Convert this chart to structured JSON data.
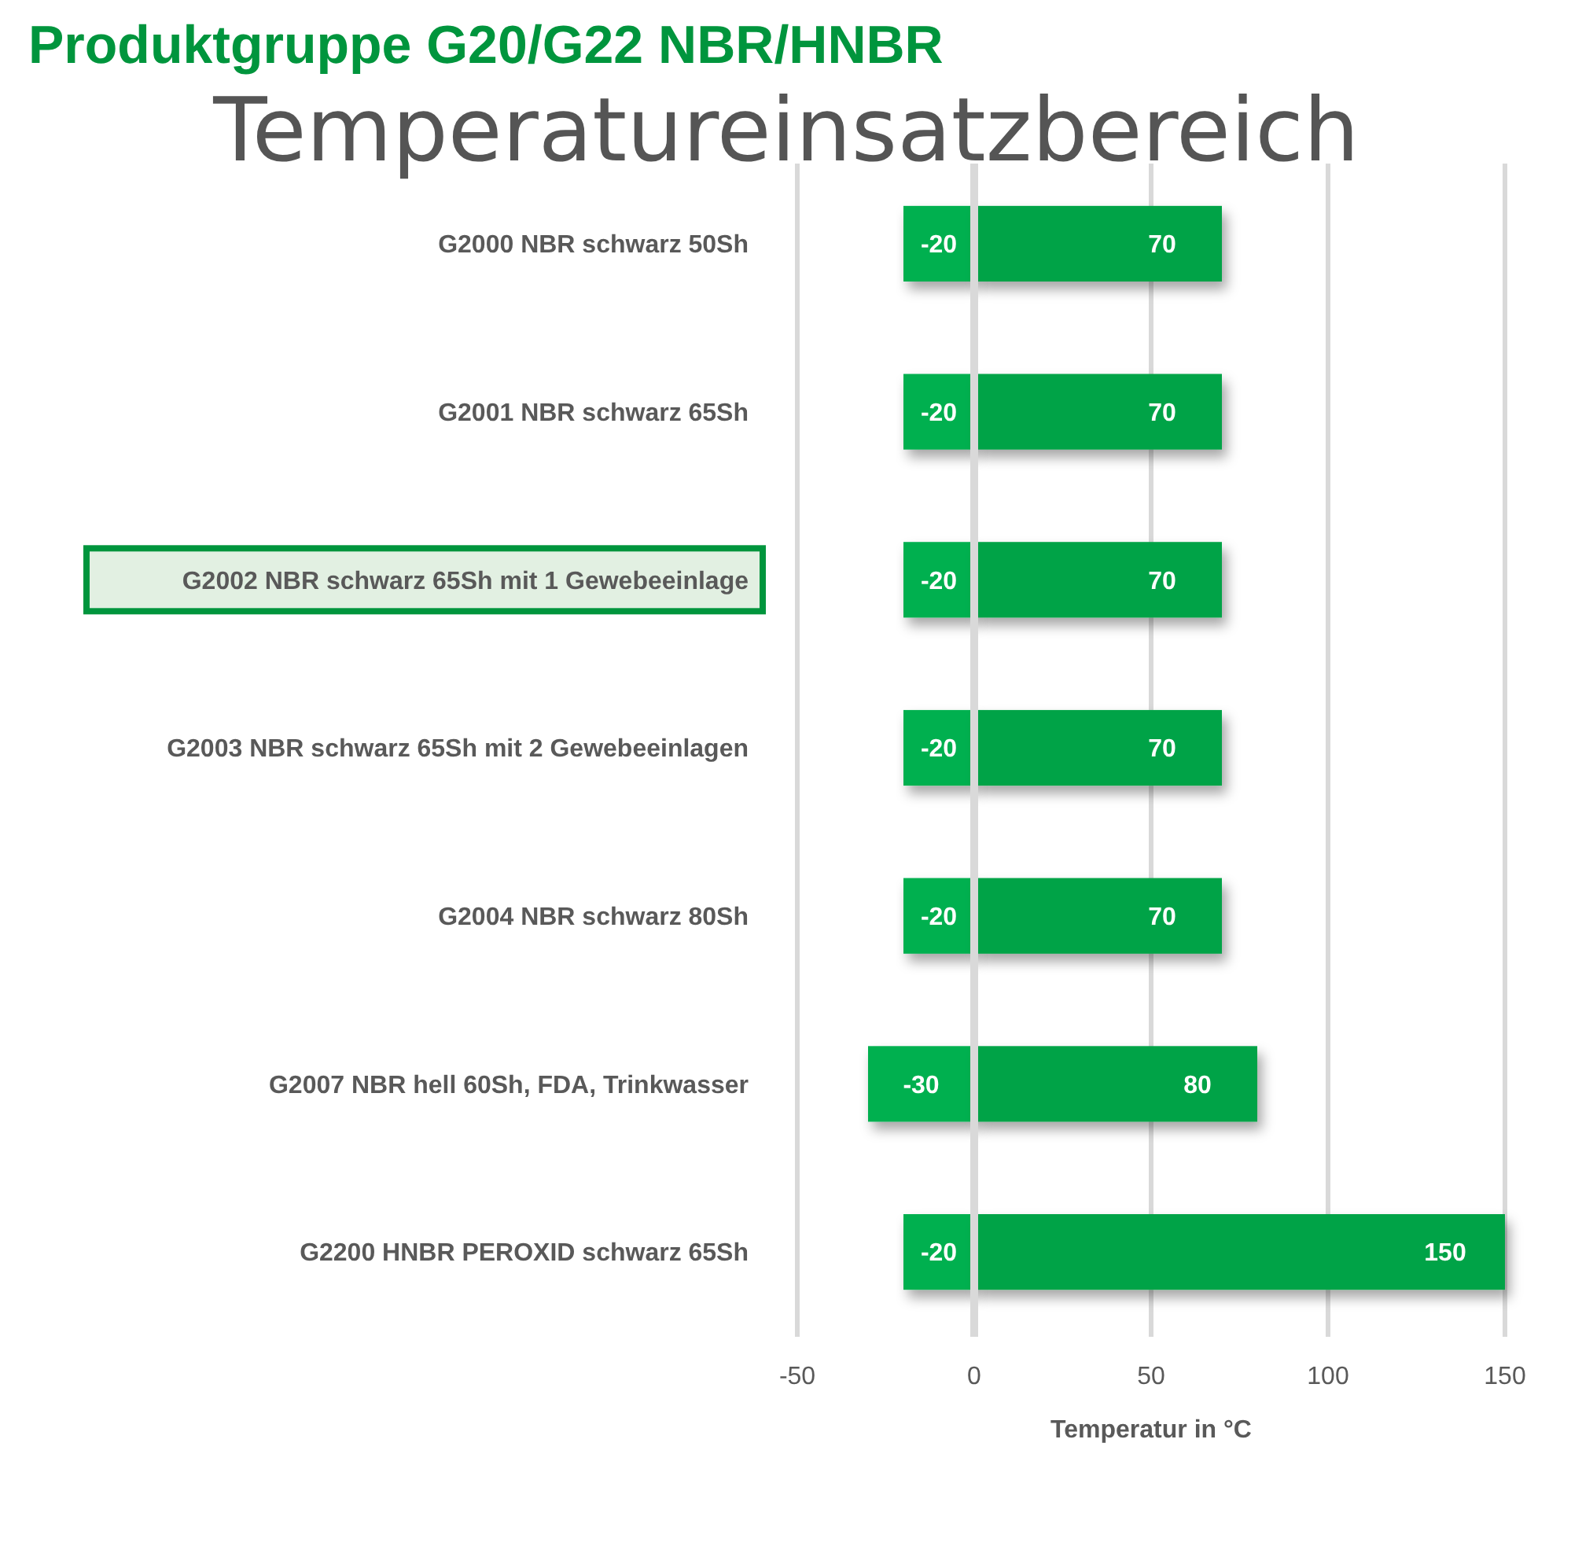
{
  "chart_data": {
    "type": "bar",
    "orientation": "horizontal",
    "stacked": true,
    "title": "Produktgruppe G20/G22 NBR/HNBR",
    "subtitle": "Temperatureinsatzbereich",
    "xlabel": "Temperatur in °C",
    "categories": [
      "G2000 NBR schwarz 50Sh",
      "G2001 NBR schwarz 65Sh",
      "G2002 NBR schwarz 65Sh mit 1 Gewebeeinlage",
      "G2003 NBR schwarz 65Sh mit 2 Gewebeeinlagen",
      "G2004 NBR schwarz 80Sh",
      "G2007 NBR hell 60Sh, FDA, Trinkwasser",
      "G2200 HNBR PEROXID schwarz 65Sh"
    ],
    "series": [
      {
        "color": "#00b050",
        "values": [
          -20,
          -20,
          -20,
          -20,
          -20,
          -30,
          -20
        ]
      },
      {
        "color": "#00a347",
        "values": [
          70,
          70,
          70,
          70,
          70,
          80,
          150
        ]
      }
    ],
    "xlim": [
      -50,
      150
    ],
    "xticks": [
      -50,
      0,
      50,
      100,
      150
    ],
    "grid": "x",
    "data_labels": true
  }
}
